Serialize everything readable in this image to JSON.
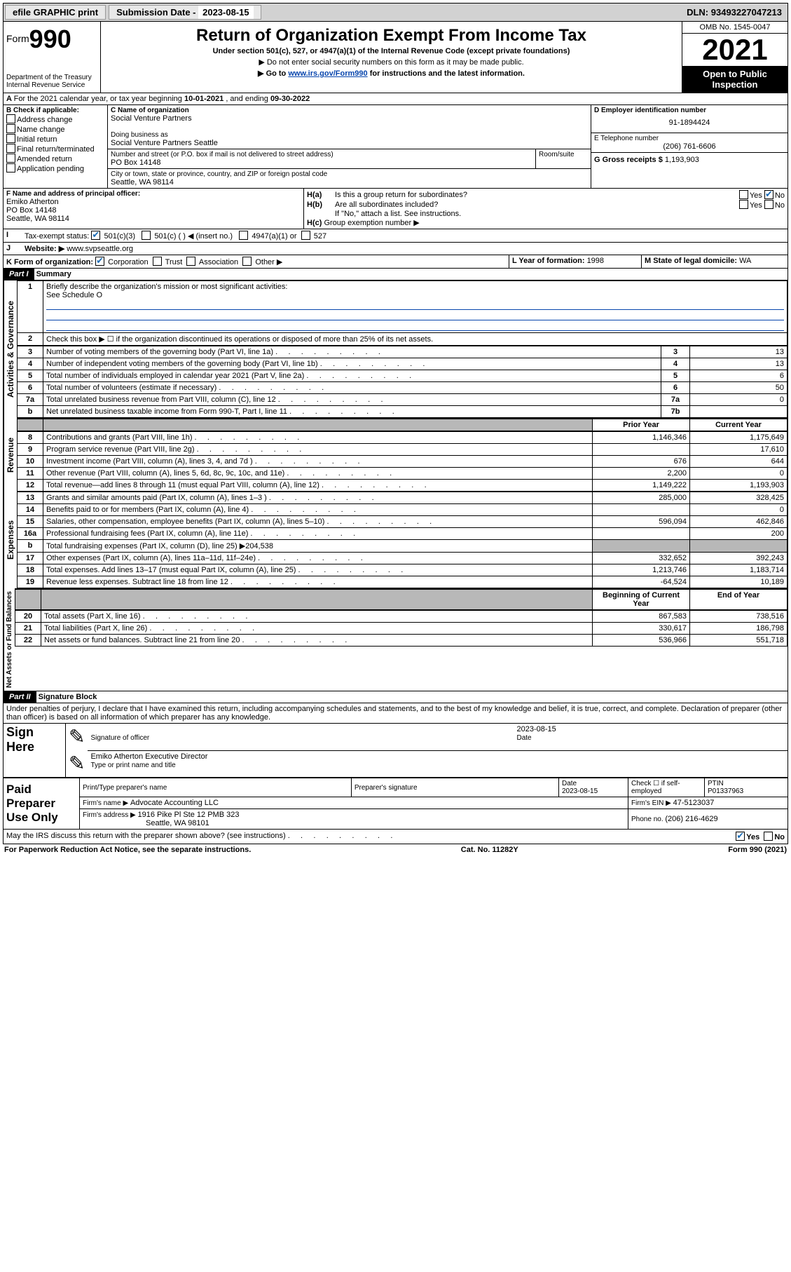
{
  "topbar": {
    "efile": "efile GRAPHIC print",
    "subdate_label": "Submission Date - ",
    "subdate": "2023-08-15",
    "dln_label": "DLN: ",
    "dln": "93493227047213"
  },
  "header": {
    "form_prefix": "Form",
    "form_no": "990",
    "dept": "Department of the Treasury",
    "irs": "Internal Revenue Service",
    "title": "Return of Organization Exempt From Income Tax",
    "sub1": "Under section 501(c), 527, or 4947(a)(1) of the Internal Revenue Code (except private foundations)",
    "sub2": "▶ Do not enter social security numbers on this form as it may be made public.",
    "sub3_pre": "▶ Go to ",
    "sub3_link": "www.irs.gov/Form990",
    "sub3_post": " for instructions and the latest information.",
    "omb": "OMB No. 1545-0047",
    "year": "2021",
    "open": "Open to Public Inspection"
  },
  "A": {
    "text": "For the 2021 calendar year, or tax year beginning ",
    "begin": "10-01-2021",
    "mid": " , and ending ",
    "end": "09-30-2022"
  },
  "B": {
    "label": "B Check if applicable:",
    "addr": "Address change",
    "name": "Name change",
    "init": "Initial return",
    "final": "Final return/terminated",
    "amend": "Amended return",
    "app": "Application pending"
  },
  "C": {
    "name_label": "C Name of organization",
    "name": "Social Venture Partners",
    "dba_label": "Doing business as",
    "dba": "Social Venture Partners Seattle",
    "addr_label": "Number and street (or P.O. box if mail is not delivered to street address)",
    "room_label": "Room/suite",
    "addr": "PO Box 14148",
    "city_label": "City or town, state or province, country, and ZIP or foreign postal code",
    "city": "Seattle, WA  98114"
  },
  "D": {
    "label": "D Employer identification number",
    "val": "91-1894424"
  },
  "E": {
    "label": "E Telephone number",
    "val": "(206) 761-6606"
  },
  "G": {
    "label": "G Gross receipts $ ",
    "val": "1,193,903"
  },
  "F": {
    "label": "F Name and address of principal officer:",
    "name": "Emiko Atherton",
    "addr1": "PO Box 14148",
    "addr2": "Seattle, WA  98114"
  },
  "H": {
    "a": "Is this a group return for subordinates?",
    "b": "Are all subordinates included?",
    "note": "If \"No,\" attach a list. See instructions.",
    "c": "Group exemption number ▶",
    "yes": "Yes",
    "no": "No"
  },
  "I": {
    "label": "Tax-exempt status:",
    "o1": "501(c)(3)",
    "o2": "501(c) (  ) ◀ (insert no.)",
    "o3": "4947(a)(1) or",
    "o4": "527"
  },
  "J": {
    "label": "Website: ▶",
    "val": "www.svpseattle.org"
  },
  "K": {
    "label": "K Form of organization:",
    "corp": "Corporation",
    "trust": "Trust",
    "assoc": "Association",
    "other": "Other ▶"
  },
  "L": {
    "label": "L Year of formation: ",
    "val": "1998"
  },
  "M": {
    "label": "M State of legal domicile: ",
    "val": "WA"
  },
  "partI": {
    "header": "Part I",
    "title": "Summary"
  },
  "summary": {
    "q1": "Briefly describe the organization's mission or most significant activities:",
    "q1a": "See Schedule O",
    "q2": "Check this box ▶ ☐  if the organization discontinued its operations or disposed of more than 25% of its net assets.",
    "rows_gov": [
      {
        "n": "3",
        "t": "Number of voting members of the governing body (Part VI, line 1a)",
        "box": "3",
        "v": "13"
      },
      {
        "n": "4",
        "t": "Number of independent voting members of the governing body (Part VI, line 1b)",
        "box": "4",
        "v": "13"
      },
      {
        "n": "5",
        "t": "Total number of individuals employed in calendar year 2021 (Part V, line 2a)",
        "box": "5",
        "v": "6"
      },
      {
        "n": "6",
        "t": "Total number of volunteers (estimate if necessary)",
        "box": "6",
        "v": "50"
      },
      {
        "n": "7a",
        "t": "Total unrelated business revenue from Part VIII, column (C), line 12",
        "box": "7a",
        "v": "0"
      },
      {
        "n": "b",
        "t": "Net unrelated business taxable income from Form 990-T, Part I, line 11",
        "box": "7b",
        "v": ""
      }
    ],
    "col_prior": "Prior Year",
    "col_current": "Current Year",
    "rows_rev": [
      {
        "n": "8",
        "t": "Contributions and grants (Part VIII, line 1h)",
        "p": "1,146,346",
        "c": "1,175,649"
      },
      {
        "n": "9",
        "t": "Program service revenue (Part VIII, line 2g)",
        "p": "",
        "c": "17,610"
      },
      {
        "n": "10",
        "t": "Investment income (Part VIII, column (A), lines 3, 4, and 7d )",
        "p": "676",
        "c": "644"
      },
      {
        "n": "11",
        "t": "Other revenue (Part VIII, column (A), lines 5, 6d, 8c, 9c, 10c, and 11e)",
        "p": "2,200",
        "c": "0"
      },
      {
        "n": "12",
        "t": "Total revenue—add lines 8 through 11 (must equal Part VIII, column (A), line 12)",
        "p": "1,149,222",
        "c": "1,193,903"
      }
    ],
    "rows_exp": [
      {
        "n": "13",
        "t": "Grants and similar amounts paid (Part IX, column (A), lines 1–3 )",
        "p": "285,000",
        "c": "328,425"
      },
      {
        "n": "14",
        "t": "Benefits paid to or for members (Part IX, column (A), line 4)",
        "p": "",
        "c": "0"
      },
      {
        "n": "15",
        "t": "Salaries, other compensation, employee benefits (Part IX, column (A), lines 5–10)",
        "p": "596,094",
        "c": "462,846"
      },
      {
        "n": "16a",
        "t": "Professional fundraising fees (Part IX, column (A), line 11e)",
        "p": "",
        "c": "200"
      },
      {
        "n": "b",
        "t": "Total fundraising expenses (Part IX, column (D), line 25) ▶204,538",
        "shade": true
      },
      {
        "n": "17",
        "t": "Other expenses (Part IX, column (A), lines 11a–11d, 11f–24e)",
        "p": "332,652",
        "c": "392,243"
      },
      {
        "n": "18",
        "t": "Total expenses. Add lines 13–17 (must equal Part IX, column (A), line 25)",
        "p": "1,213,746",
        "c": "1,183,714"
      },
      {
        "n": "19",
        "t": "Revenue less expenses. Subtract line 18 from line 12",
        "p": "-64,524",
        "c": "10,189"
      }
    ],
    "col_begin": "Beginning of Current Year",
    "col_end": "End of Year",
    "rows_net": [
      {
        "n": "20",
        "t": "Total assets (Part X, line 16)",
        "p": "867,583",
        "c": "738,516"
      },
      {
        "n": "21",
        "t": "Total liabilities (Part X, line 26)",
        "p": "330,617",
        "c": "186,798"
      },
      {
        "n": "22",
        "t": "Net assets or fund balances. Subtract line 21 from line 20",
        "p": "536,966",
        "c": "551,718"
      }
    ]
  },
  "side": {
    "gov": "Activities & Governance",
    "rev": "Revenue",
    "exp": "Expenses",
    "net": "Net Assets or Fund Balances"
  },
  "partII": {
    "header": "Part II",
    "title": "Signature Block",
    "decl": "Under penalties of perjury, I declare that I have examined this return, including accompanying schedules and statements, and to the best of my knowledge and belief, it is true, correct, and complete. Declaration of preparer (other than officer) is based on all information of which preparer has any knowledge."
  },
  "sign": {
    "here": "Sign Here",
    "sig_label": "Signature of officer",
    "date_label": "Date",
    "date": "2023-08-15",
    "name": "Emiko Atherton Executive Director",
    "name_label": "Type or print name and title"
  },
  "prep": {
    "title": "Paid Preparer Use Only",
    "name_label": "Print/Type preparer's name",
    "sig_label": "Preparer's signature",
    "date_label": "Date",
    "date": "2023-08-15",
    "check_label": "Check ☐ if self-employed",
    "ptin_label": "PTIN",
    "ptin": "P01337963",
    "firm_name_label": "Firm's name    ▶ ",
    "firm_name": "Advocate Accounting LLC",
    "firm_ein_label": "Firm's EIN ▶ ",
    "firm_ein": "47-5123037",
    "firm_addr_label": "Firm's address ▶ ",
    "firm_addr1": "1916 Pike Pl Ste 12 PMB 323",
    "firm_addr2": "Seattle, WA  98101",
    "phone_label": "Phone no. ",
    "phone": "(206) 216-4629"
  },
  "discuss": {
    "q": "May the IRS discuss this return with the preparer shown above? (see instructions)",
    "yes": "Yes",
    "no": "No"
  },
  "footer": {
    "left": "For Paperwork Reduction Act Notice, see the separate instructions.",
    "mid": "Cat. No. 11282Y",
    "right": "Form 990 (2021)"
  }
}
